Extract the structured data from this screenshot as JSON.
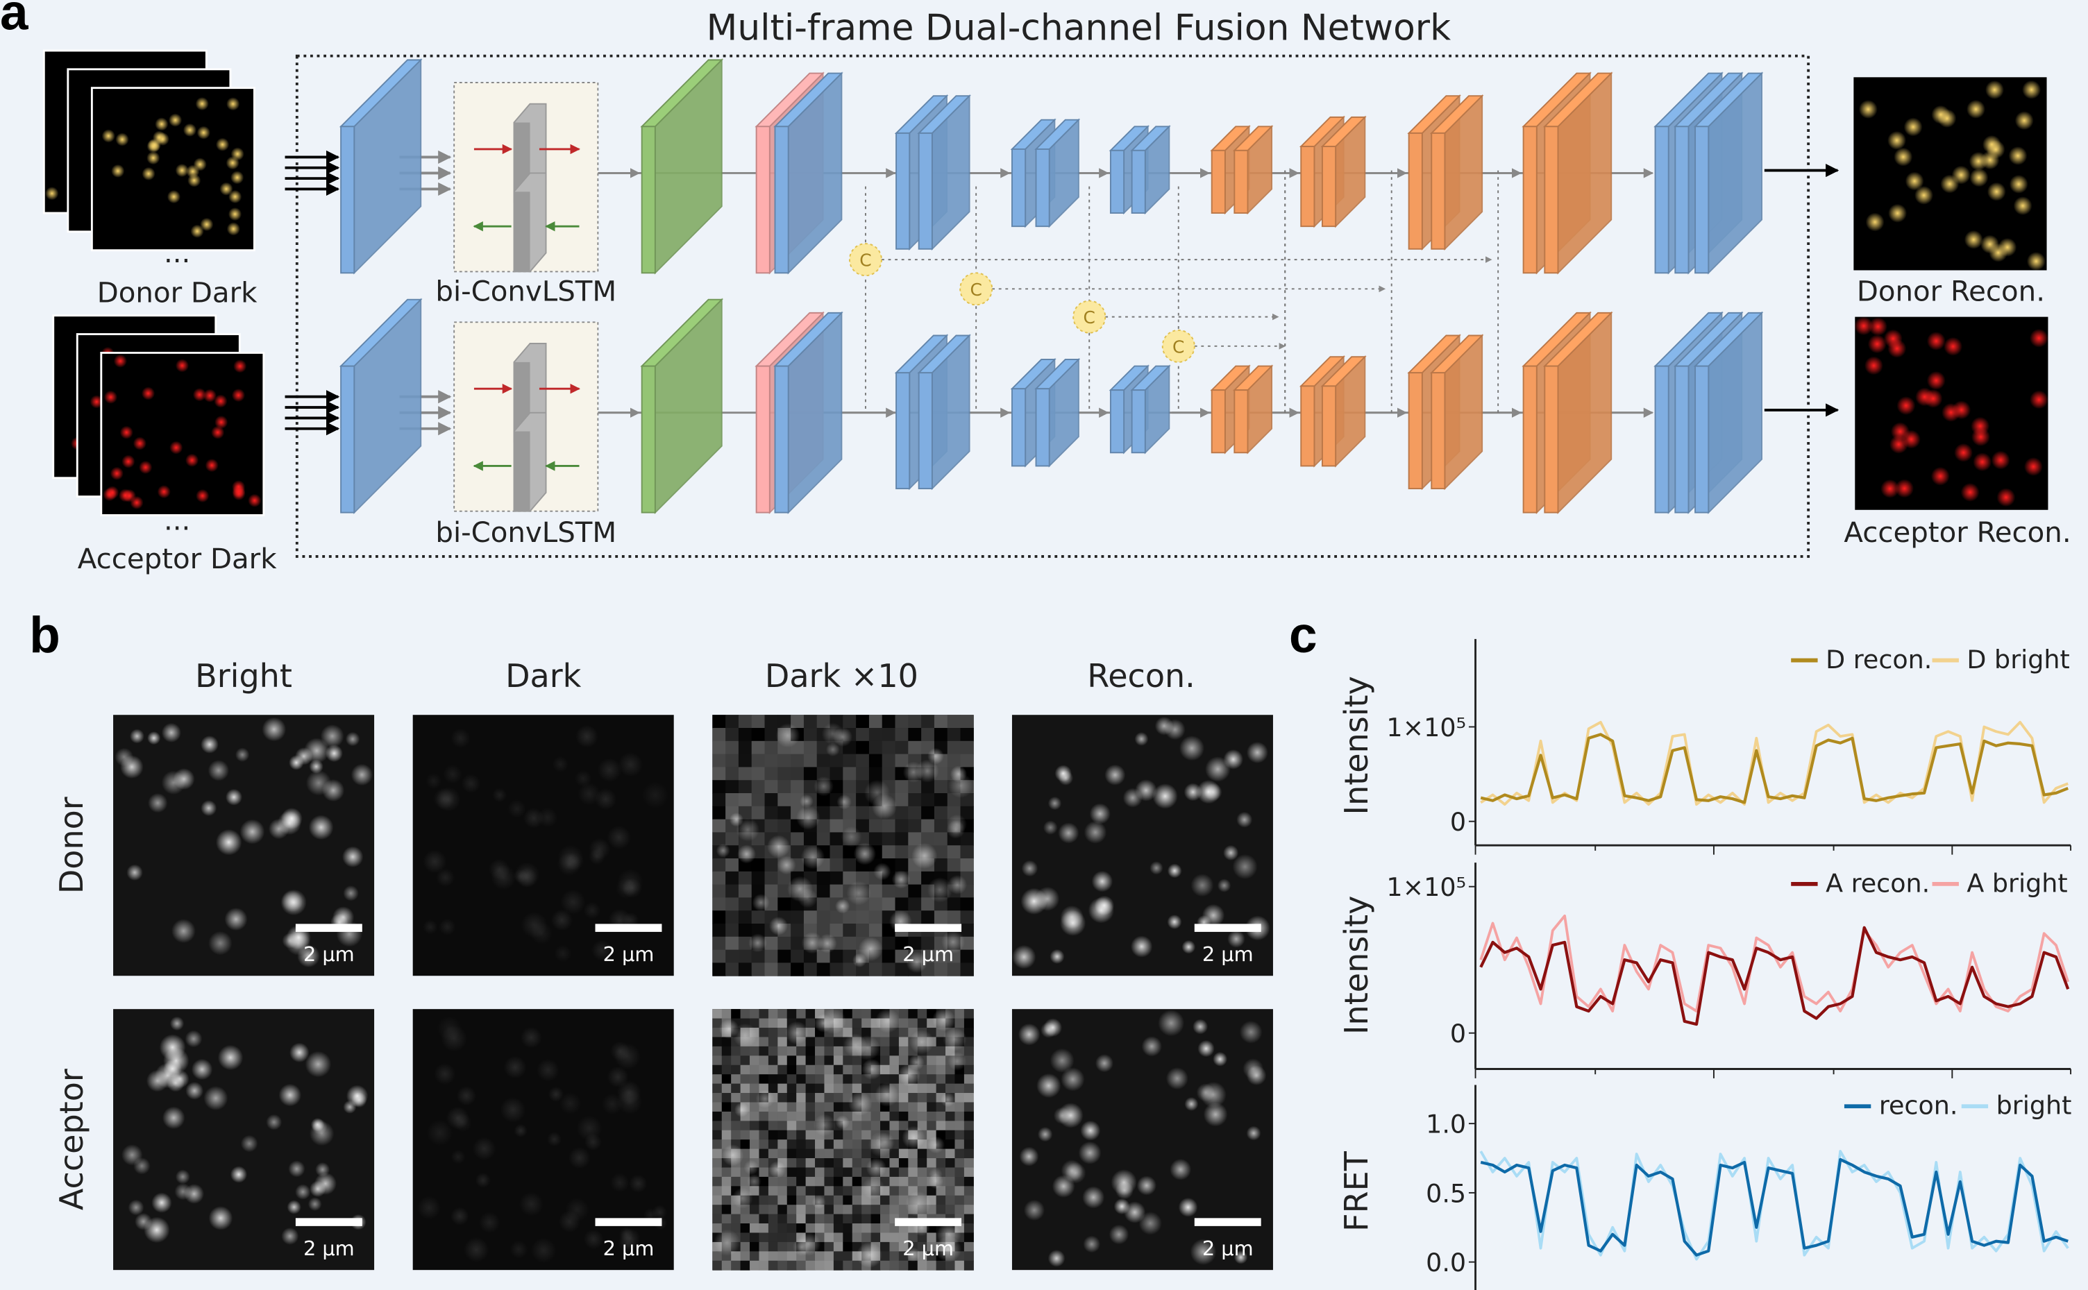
{
  "panel_a": {
    "label": "a",
    "title": "Multi-frame Dual-channel Fusion Network",
    "input_donor": "Donor Dark",
    "input_acceptor": "Acceptor Dark",
    "ellipsis": "...",
    "lstm_label_top": "bi-ConvLSTM",
    "lstm_label_bottom": "bi-ConvLSTM",
    "concat_symbol": "C",
    "output_donor": "Donor Recon.",
    "output_acceptor": "Acceptor Recon.",
    "colors": {
      "encoder": "#7aa6d6",
      "lstm": "#a0a0a0",
      "fusion": "#8dbb6e",
      "skip": "#f2a6a6",
      "decoder": "#e8955a",
      "concat": "#fbe9a0",
      "donor_spot": "#d9a520",
      "acceptor_spot": "#e01010"
    }
  },
  "panel_b": {
    "label": "b",
    "columns": [
      "Bright",
      "Dark",
      "Dark ×10",
      "Recon."
    ],
    "rows": [
      "Donor",
      "Acceptor"
    ],
    "scale_bar": "2 µm"
  },
  "panel_c": {
    "label": "c"
  },
  "chart_data": [
    {
      "type": "line",
      "ylabel": "Intensity",
      "yticks": [
        "0",
        "1×10⁵"
      ],
      "ylim": [
        -0.1,
        1.3
      ],
      "legend": "top-right",
      "series": [
        {
          "name": "D recon.",
          "color": "#b08a1e",
          "values": [
            0.25,
            0.22,
            0.28,
            0.24,
            0.27,
            0.7,
            0.25,
            0.28,
            0.24,
            0.88,
            0.92,
            0.85,
            0.27,
            0.25,
            0.22,
            0.26,
            0.75,
            0.78,
            0.23,
            0.22,
            0.26,
            0.24,
            0.2,
            0.75,
            0.26,
            0.24,
            0.27,
            0.25,
            0.8,
            0.86,
            0.83,
            0.88,
            0.24,
            0.22,
            0.25,
            0.27,
            0.29,
            0.3,
            0.78,
            0.8,
            0.82,
            0.3,
            0.85,
            0.8,
            0.83,
            0.82,
            0.8,
            0.28,
            0.3,
            0.35
          ]
        },
        {
          "name": "D bright",
          "color": "#f2d28e",
          "values": [
            0.2,
            0.28,
            0.18,
            0.3,
            0.22,
            0.85,
            0.2,
            0.3,
            0.22,
            0.98,
            1.05,
            0.8,
            0.2,
            0.3,
            0.18,
            0.3,
            0.9,
            0.92,
            0.18,
            0.28,
            0.2,
            0.3,
            0.18,
            0.88,
            0.2,
            0.3,
            0.22,
            0.3,
            0.95,
            1.02,
            0.9,
            0.92,
            0.2,
            0.28,
            0.2,
            0.3,
            0.25,
            0.35,
            0.9,
            0.95,
            0.9,
            0.22,
            1.0,
            0.95,
            0.92,
            1.05,
            0.88,
            0.2,
            0.35,
            0.4
          ]
        }
      ]
    },
    {
      "type": "line",
      "ylabel": "Intensity",
      "yticks": [
        "0",
        "1×10⁵"
      ],
      "ylim": [
        -0.25,
        1.15
      ],
      "legend": "top-right",
      "series": [
        {
          "name": "A recon.",
          "color": "#8b1010",
          "values": [
            0.45,
            0.62,
            0.55,
            0.58,
            0.52,
            0.3,
            0.6,
            0.62,
            0.18,
            0.15,
            0.25,
            0.2,
            0.5,
            0.48,
            0.35,
            0.5,
            0.48,
            0.08,
            0.06,
            0.55,
            0.52,
            0.5,
            0.3,
            0.58,
            0.55,
            0.5,
            0.52,
            0.15,
            0.1,
            0.18,
            0.2,
            0.25,
            0.72,
            0.55,
            0.52,
            0.5,
            0.52,
            0.48,
            0.22,
            0.25,
            0.2,
            0.45,
            0.25,
            0.2,
            0.18,
            0.2,
            0.25,
            0.55,
            0.52,
            0.3
          ]
        },
        {
          "name": "A bright",
          "color": "#f5a3a3",
          "values": [
            0.5,
            0.75,
            0.5,
            0.65,
            0.45,
            0.2,
            0.7,
            0.8,
            0.25,
            0.18,
            0.3,
            0.15,
            0.6,
            0.42,
            0.3,
            0.6,
            0.55,
            0.2,
            0.15,
            0.6,
            0.58,
            0.45,
            0.2,
            0.65,
            0.6,
            0.45,
            0.55,
            0.25,
            0.2,
            0.28,
            0.15,
            0.3,
            0.7,
            0.6,
            0.45,
            0.55,
            0.6,
            0.4,
            0.2,
            0.3,
            0.15,
            0.55,
            0.3,
            0.18,
            0.15,
            0.25,
            0.3,
            0.68,
            0.6,
            0.35
          ]
        }
      ]
    },
    {
      "type": "line",
      "ylabel": "FRET",
      "yticks": [
        "0.0",
        "0.5",
        "1.0"
      ],
      "ylim": [
        -0.05,
        1.25
      ],
      "legend": "top-right",
      "series": [
        {
          "name": "recon.",
          "color": "#0e6aa8",
          "values": [
            0.72,
            0.7,
            0.65,
            0.7,
            0.68,
            0.22,
            0.66,
            0.7,
            0.68,
            0.12,
            0.08,
            0.2,
            0.12,
            0.7,
            0.62,
            0.65,
            0.6,
            0.15,
            0.05,
            0.08,
            0.7,
            0.68,
            0.72,
            0.25,
            0.68,
            0.66,
            0.64,
            0.1,
            0.12,
            0.15,
            0.74,
            0.7,
            0.65,
            0.62,
            0.6,
            0.55,
            0.18,
            0.2,
            0.65,
            0.2,
            0.58,
            0.15,
            0.12,
            0.15,
            0.14,
            0.7,
            0.62,
            0.15,
            0.18,
            0.15
          ]
        },
        {
          "name": "bright",
          "color": "#a9dcf5",
          "values": [
            0.8,
            0.65,
            0.75,
            0.62,
            0.72,
            0.1,
            0.72,
            0.65,
            0.75,
            0.2,
            0.05,
            0.25,
            0.08,
            0.78,
            0.58,
            0.7,
            0.55,
            0.22,
            0.02,
            0.15,
            0.78,
            0.62,
            0.75,
            0.15,
            0.75,
            0.6,
            0.7,
            0.05,
            0.18,
            0.1,
            0.8,
            0.65,
            0.7,
            0.58,
            0.65,
            0.5,
            0.1,
            0.15,
            0.72,
            0.1,
            0.65,
            0.1,
            0.18,
            0.08,
            0.2,
            0.75,
            0.55,
            0.08,
            0.22,
            0.1
          ]
        }
      ]
    }
  ]
}
